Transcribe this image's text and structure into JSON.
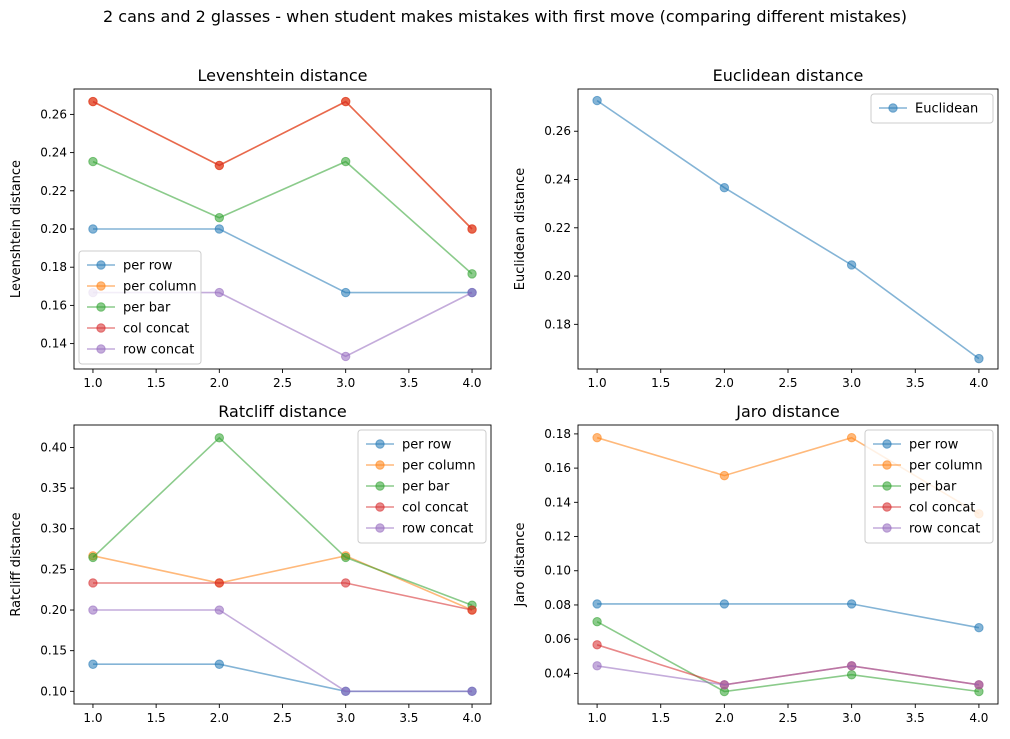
{
  "figure": {
    "suptitle": "2 cans and 2 glasses - when student makes mistakes with first move (comparing different mistakes)"
  },
  "colors": {
    "per row": "#1f77b4",
    "per column": "#ff7f0e",
    "per bar": "#2ca02c",
    "col concat": "#d62728",
    "row concat": "#9467bd",
    "Euclidean": "#1f77b4"
  },
  "chart_data": [
    {
      "type": "line",
      "title": "Levenshtein distance",
      "xlabel": "",
      "ylabel": "Levenshtein distance",
      "x": [
        1.0,
        2.0,
        3.0,
        4.0
      ],
      "xlim": [
        0.85,
        4.15
      ],
      "ylim": [
        0.1267,
        0.2733
      ],
      "xticks": [
        1.0,
        1.5,
        2.0,
        2.5,
        3.0,
        3.5,
        4.0
      ],
      "xtick_labels": [
        "1.0",
        "1.5",
        "2.0",
        "2.5",
        "3.0",
        "3.5",
        "4.0"
      ],
      "yticks": [
        0.14,
        0.16,
        0.18,
        0.2,
        0.22,
        0.24,
        0.26
      ],
      "ytick_labels": [
        "0.14",
        "0.16",
        "0.18",
        "0.20",
        "0.22",
        "0.24",
        "0.26"
      ],
      "legend": "lower-left",
      "series": [
        {
          "name": "per row",
          "values": [
            0.2,
            0.2,
            0.1667,
            0.1667
          ]
        },
        {
          "name": "per column",
          "values": [
            0.2667,
            0.2333,
            0.2667,
            0.2
          ]
        },
        {
          "name": "per bar",
          "values": [
            0.2353,
            0.2059,
            0.2353,
            0.1765
          ]
        },
        {
          "name": "col concat",
          "values": [
            0.2667,
            0.2333,
            0.2667,
            0.2
          ]
        },
        {
          "name": "row concat",
          "values": [
            0.1667,
            0.1667,
            0.1333,
            0.1667
          ]
        }
      ]
    },
    {
      "type": "line",
      "title": "Euclidean distance",
      "xlabel": "",
      "ylabel": "Euclidean distance",
      "x": [
        1.0,
        2.0,
        3.0,
        4.0
      ],
      "xlim": [
        0.85,
        4.15
      ],
      "ylim": [
        0.1615,
        0.2775
      ],
      "xticks": [
        1.0,
        1.5,
        2.0,
        2.5,
        3.0,
        3.5,
        4.0
      ],
      "xtick_labels": [
        "1.0",
        "1.5",
        "2.0",
        "2.5",
        "3.0",
        "3.5",
        "4.0"
      ],
      "yticks": [
        0.18,
        0.2,
        0.22,
        0.24,
        0.26
      ],
      "ytick_labels": [
        "0.18",
        "0.20",
        "0.22",
        "0.24",
        "0.26"
      ],
      "legend": "upper-right",
      "series": [
        {
          "name": "Euclidean",
          "values": [
            0.2727,
            0.2366,
            0.2046,
            0.1658
          ]
        }
      ]
    },
    {
      "type": "line",
      "title": "Ratcliff distance",
      "xlabel": "",
      "ylabel": "Ratcliff distance",
      "x": [
        1.0,
        2.0,
        3.0,
        4.0
      ],
      "xlim": [
        0.85,
        4.15
      ],
      "ylim": [
        0.0844,
        0.4276
      ],
      "xticks": [
        1.0,
        1.5,
        2.0,
        2.5,
        3.0,
        3.5,
        4.0
      ],
      "xtick_labels": [
        "1.0",
        "1.5",
        "2.0",
        "2.5",
        "3.0",
        "3.5",
        "4.0"
      ],
      "yticks": [
        0.1,
        0.15,
        0.2,
        0.25,
        0.3,
        0.35,
        0.4
      ],
      "ytick_labels": [
        "0.10",
        "0.15",
        "0.20",
        "0.25",
        "0.30",
        "0.35",
        "0.40"
      ],
      "legend": "upper-right",
      "series": [
        {
          "name": "per row",
          "values": [
            0.1333,
            0.1333,
            0.1,
            0.1
          ]
        },
        {
          "name": "per column",
          "values": [
            0.2667,
            0.2333,
            0.2667,
            0.2
          ]
        },
        {
          "name": "per bar",
          "values": [
            0.2647,
            0.4118,
            0.2647,
            0.2059
          ]
        },
        {
          "name": "col concat",
          "values": [
            0.2333,
            0.2333,
            0.2333,
            0.2
          ]
        },
        {
          "name": "row concat",
          "values": [
            0.2,
            0.2,
            0.1,
            0.1
          ]
        }
      ]
    },
    {
      "type": "line",
      "title": "Jaro distance",
      "xlabel": "",
      "ylabel": "Jaro distance",
      "x": [
        1.0,
        2.0,
        3.0,
        4.0
      ],
      "xlim": [
        0.85,
        4.15
      ],
      "ylim": [
        0.0221,
        0.1852
      ],
      "xticks": [
        1.0,
        1.5,
        2.0,
        2.5,
        3.0,
        3.5,
        4.0
      ],
      "xtick_labels": [
        "1.0",
        "1.5",
        "2.0",
        "2.5",
        "3.0",
        "3.5",
        "4.0"
      ],
      "yticks": [
        0.04,
        0.06,
        0.08,
        0.1,
        0.12,
        0.14,
        0.16,
        0.18
      ],
      "ytick_labels": [
        "0.04",
        "0.06",
        "0.08",
        "0.10",
        "0.12",
        "0.14",
        "0.16",
        "0.18"
      ],
      "legend": "upper-right",
      "series": [
        {
          "name": "per row",
          "values": [
            0.0806,
            0.0806,
            0.0806,
            0.0667
          ]
        },
        {
          "name": "per column",
          "values": [
            0.1778,
            0.1556,
            0.1778,
            0.1333
          ]
        },
        {
          "name": "per bar",
          "values": [
            0.0702,
            0.0294,
            0.0392,
            0.0294
          ]
        },
        {
          "name": "col concat",
          "values": [
            0.0567,
            0.0333,
            0.0444,
            0.0333
          ]
        },
        {
          "name": "row concat",
          "values": [
            0.0444,
            0.0333,
            0.0444,
            0.0333
          ]
        }
      ]
    }
  ]
}
